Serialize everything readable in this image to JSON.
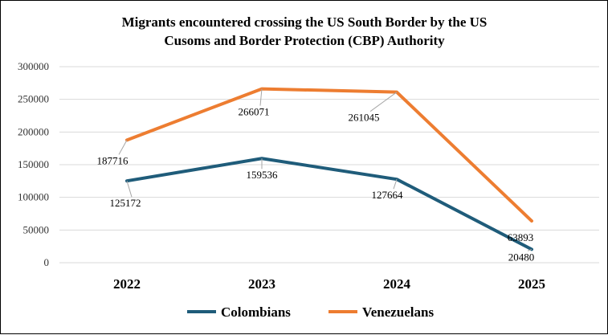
{
  "chart_data": {
    "type": "line",
    "title": "Migrants encountered crossing the US South Border by the US Cusoms and Border Protection (CBP) Authority",
    "title_lines": [
      "Migrants encountered crossing the US South Border by the US",
      "Cusoms and Border Protection (CBP) Authority"
    ],
    "categories": [
      "2022",
      "2023",
      "2024",
      "2025"
    ],
    "series": [
      {
        "name": "Colombians",
        "values": [
          125172,
          159536,
          127664,
          20480
        ],
        "color": "#1f5c7a"
      },
      {
        "name": "Venezuelans",
        "values": [
          187716,
          266071,
          261045,
          63893
        ],
        "color": "#ed7d31"
      }
    ],
    "ylim": [
      0,
      300000
    ],
    "yticks": [
      "0",
      "50000",
      "100000",
      "150000",
      "200000",
      "250000",
      "300000"
    ],
    "grid": true,
    "legend_position": "bottom"
  }
}
